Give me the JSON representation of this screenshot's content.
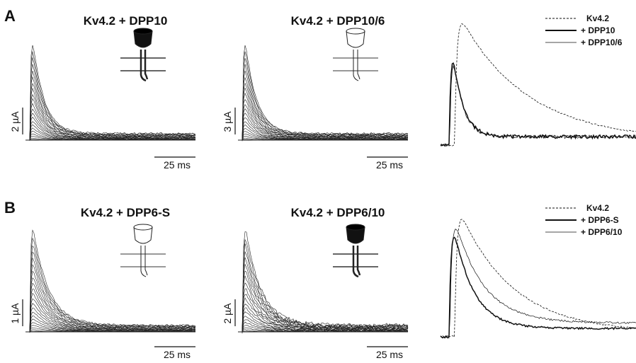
{
  "rows": [
    {
      "label": "A",
      "panels": [
        {
          "title": "Kv4.2 + DPP10",
          "current_scale": "2 µA",
          "time_scale": "25 ms"
        },
        {
          "title": "Kv4.2 + DPP10/6",
          "current_scale": "3 µA",
          "time_scale": "25 ms"
        }
      ],
      "legend": [
        "Kv4.2",
        "+ DPP10",
        "+ DPP10/6"
      ]
    },
    {
      "label": "B",
      "panels": [
        {
          "title": "Kv4.2 + DPP6-S",
          "current_scale": "1 µA",
          "time_scale": "25 ms"
        },
        {
          "title": "Kv4.2 + DPP6/10",
          "current_scale": "2 µA",
          "time_scale": "25 ms"
        }
      ],
      "legend": [
        "Kv4.2",
        "+ DPP6-S",
        "+ DPP6/10"
      ]
    }
  ]
}
